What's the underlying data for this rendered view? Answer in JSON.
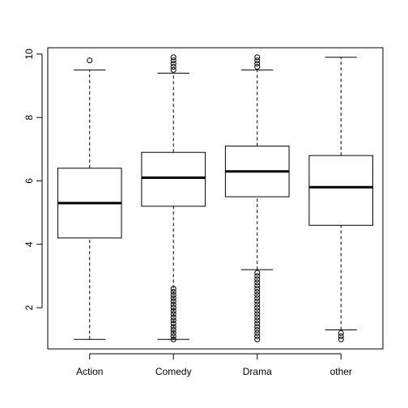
{
  "chart_data": {
    "type": "boxplot",
    "title": "",
    "xlabel": "",
    "ylabel": "",
    "ylim": [
      0.7,
      10.2
    ],
    "yticks": [
      2,
      4,
      6,
      8,
      10
    ],
    "grid": false,
    "categories": [
      "Action",
      "Comedy",
      "Drama",
      "other"
    ],
    "boxes": [
      {
        "name": "Action",
        "whisker_low": 1.0,
        "q1": 4.2,
        "median": 5.3,
        "q3": 6.4,
        "whisker_high": 9.5,
        "outliers": [
          9.8
        ]
      },
      {
        "name": "Comedy",
        "whisker_low": 1.0,
        "q1": 5.2,
        "median": 6.1,
        "q3": 6.9,
        "whisker_high": 9.4,
        "outliers": [
          9.5,
          9.6,
          9.7,
          9.8,
          9.9,
          1.0,
          1.1,
          1.2,
          1.3,
          1.4,
          1.5,
          1.6,
          1.7,
          1.8,
          1.9,
          2.0,
          2.1,
          2.2,
          2.3,
          2.4,
          2.5,
          2.6
        ]
      },
      {
        "name": "Drama",
        "whisker_low": 3.2,
        "q1": 5.5,
        "median": 6.3,
        "q3": 7.1,
        "whisker_high": 9.5,
        "outliers": [
          9.6,
          9.7,
          9.8,
          9.9,
          1.0,
          1.1,
          1.2,
          1.3,
          1.4,
          1.5,
          1.6,
          1.7,
          1.8,
          1.9,
          2.0,
          2.1,
          2.2,
          2.3,
          2.4,
          2.5,
          2.6,
          2.7,
          2.8,
          2.9,
          3.0,
          3.1
        ]
      },
      {
        "name": "other",
        "whisker_low": 1.3,
        "q1": 4.6,
        "median": 5.8,
        "q3": 6.8,
        "whisker_high": 9.9,
        "outliers": [
          1.0,
          1.1,
          1.2
        ]
      }
    ]
  }
}
